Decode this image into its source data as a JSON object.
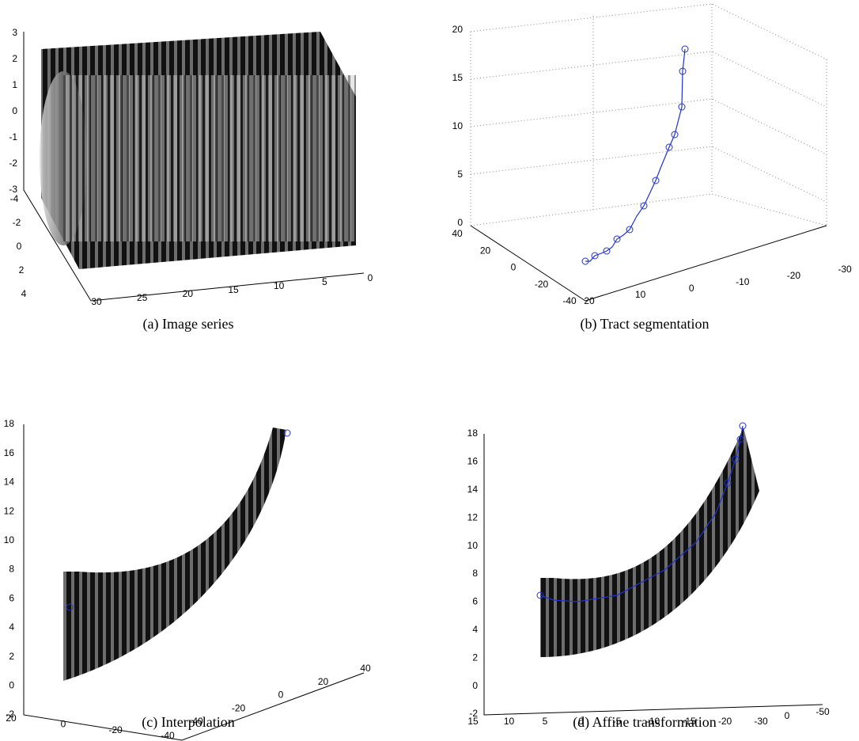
{
  "panels": [
    {
      "caption": "(a) Image series",
      "axes": [
        [
          3,
          2,
          1,
          0,
          -1,
          -2,
          -3
        ],
        [
          -4,
          -2,
          0,
          2,
          4
        ],
        [
          30,
          25,
          20,
          15,
          10,
          5,
          0
        ]
      ]
    },
    {
      "caption": "(b) Tract segmentation",
      "axes": [
        [
          20,
          15,
          10,
          5,
          0
        ],
        [
          40,
          20,
          0,
          -20,
          -40
        ],
        [
          20,
          10,
          0,
          -10,
          -20,
          -30
        ]
      ]
    },
    {
      "caption": "(c) Interpolation",
      "axes": [
        [
          18,
          16,
          14,
          12,
          10,
          8,
          6,
          4,
          2,
          0,
          -2
        ],
        [
          20,
          0,
          -20,
          -40
        ],
        [
          -40,
          -20,
          0,
          20,
          40
        ]
      ]
    },
    {
      "caption": "(d) Affine transformation",
      "axes": [
        [
          18,
          16,
          14,
          12,
          10,
          8,
          6,
          4,
          2,
          0,
          -2
        ],
        [
          15,
          10,
          5,
          0,
          -5,
          -10,
          -15,
          -20,
          -30
        ],
        [
          0,
          -50
        ]
      ]
    }
  ]
}
